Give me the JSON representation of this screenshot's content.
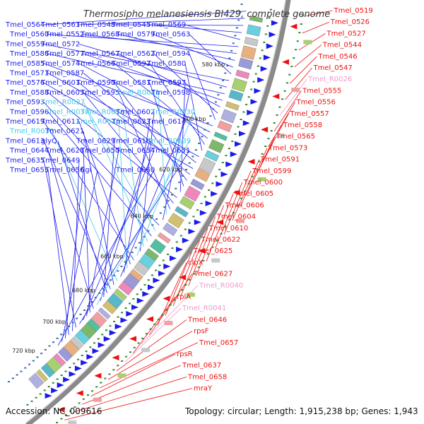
{
  "title": "Thermosipho melanesiensis BI429, complete genome",
  "footer": {
    "accession": "Accession: NC_009616",
    "topology": "Topology: circular; Length: 1,915,238 bp; Genes: 1,943"
  },
  "colors": {
    "forward_strand": "#1a1aee",
    "reverse_strand": "#ee1111",
    "rna_forward": "#44c8e8",
    "rna_reverse": "#ee99cc",
    "backbone": "#7a7a7a",
    "dots": "#2a8a2a"
  },
  "tick_labels": [
    "580 kbp",
    "600 kbp",
    "620 kbp",
    "640 kbp",
    "660 kbp",
    "680 kbp",
    "700 kbp",
    "720 kbp"
  ],
  "labels_forward": [
    {
      "t": "Tmel_0564",
      "type": "fwd"
    },
    {
      "t": "Tmel_0561",
      "type": "fwd"
    },
    {
      "t": "Tmel_0548",
      "type": "fwd"
    },
    {
      "t": "Tmel_0545",
      "type": "fwd"
    },
    {
      "t": "Tmel_0569",
      "type": "fwd"
    },
    {
      "t": "Tmel_0560",
      "type": "fwd"
    },
    {
      "t": "Tmel_0552",
      "type": "fwd"
    },
    {
      "t": "Tmel_0568",
      "type": "fwd"
    },
    {
      "t": "Tmel_0579",
      "type": "fwd"
    },
    {
      "t": "Tmel_0563",
      "type": "fwd"
    },
    {
      "t": "Tmel_0559",
      "type": "fwd"
    },
    {
      "t": "Tmel_0572",
      "type": "fwd"
    },
    {
      "t": "Tmel_0586",
      "type": "fwd"
    },
    {
      "t": "Tmel_0577",
      "type": "fwd"
    },
    {
      "t": "Tmel_0567",
      "type": "fwd"
    },
    {
      "t": "Tmel_0562",
      "type": "fwd"
    },
    {
      "t": "Tmel_0594",
      "type": "fwd"
    },
    {
      "t": "Tmel_0585",
      "type": "fwd"
    },
    {
      "t": "Tmel_0574",
      "type": "fwd"
    },
    {
      "t": "Tmel_0566",
      "type": "fwd"
    },
    {
      "t": "Tmel_0592",
      "type": "fwd"
    },
    {
      "t": "Tmel_0580",
      "type": "fwd"
    },
    {
      "t": "Tmel_0571",
      "type": "fwd"
    },
    {
      "t": "Tmel_0587",
      "type": "fwd"
    },
    {
      "t": "Tmel_0576",
      "type": "fwd"
    },
    {
      "t": "Tmel_0601",
      "type": "fwd"
    },
    {
      "t": "Tmel_0590",
      "type": "fwd"
    },
    {
      "t": "Tmel_0581",
      "type": "fwd"
    },
    {
      "t": "Tmel_0597",
      "type": "fwd"
    },
    {
      "t": "Tmel_0588",
      "type": "fwd"
    },
    {
      "t": "Tmel_0603",
      "type": "fwd"
    },
    {
      "t": "Tmel_0595",
      "type": "fwd"
    },
    {
      "t": "Tmel_R0031",
      "type": "rna"
    },
    {
      "t": "Tmel_0598",
      "type": "fwd"
    },
    {
      "t": "Tmel_0593",
      "type": "fwd"
    },
    {
      "t": "Tmel_R0027",
      "type": "rna"
    },
    {
      "t": "Tmel_0596",
      "type": "fwd"
    },
    {
      "t": "Tmel_R0037",
      "type": "rna"
    },
    {
      "t": "Tmel_R0033",
      "type": "rna"
    },
    {
      "t": "Tmel_0602",
      "type": "fwd"
    },
    {
      "t": "Tmel_R0030",
      "type": "rna"
    },
    {
      "t": "Tmel_0619",
      "type": "fwd"
    },
    {
      "t": "Tmel_0611",
      "type": "fwd"
    },
    {
      "t": "Tmel_R0035",
      "type": "rna"
    },
    {
      "t": "Tmel_0623",
      "type": "fwd"
    },
    {
      "t": "Tmel_0614",
      "type": "fwd"
    },
    {
      "t": "Tmel_R0036",
      "type": "rna"
    },
    {
      "t": "Tmel_0621",
      "type": "fwd"
    },
    {
      "t": "Tmel_0613",
      "type": "fwd"
    },
    {
      "t": "glyQ",
      "type": "fwd"
    },
    {
      "t": "Tmel_0629",
      "type": "fwd"
    },
    {
      "t": "Tmel_0618",
      "type": "fwd"
    },
    {
      "t": "Tmel_R0039",
      "type": "rna"
    },
    {
      "t": "Tmel_0644",
      "type": "fwd"
    },
    {
      "t": "Tmel_0628",
      "type": "fwd"
    },
    {
      "t": "Tmel_0650",
      "type": "fwd"
    },
    {
      "t": "Tmel_0634",
      "type": "fwd"
    },
    {
      "t": "Tmel_0651",
      "type": "fwd"
    },
    {
      "t": "Tmel_0635",
      "type": "fwd"
    },
    {
      "t": "Tmel_0649",
      "type": "fwd"
    },
    {
      "t": "Tmel_0655",
      "type": "fwd"
    },
    {
      "t": "Tmel_0656",
      "type": "fwd"
    },
    {
      "t": "flgI",
      "type": "fwd"
    },
    {
      "t": "Tmel_0660",
      "type": "fwd"
    }
  ],
  "labels_reverse": [
    {
      "t": "Tmel_0519",
      "type": "rev"
    },
    {
      "t": "Tmel_0526",
      "type": "rev"
    },
    {
      "t": "Tmel_0527",
      "type": "rev"
    },
    {
      "t": "Tmel_0544",
      "type": "rev"
    },
    {
      "t": "Tmel_0546",
      "type": "rev"
    },
    {
      "t": "Tmel_0547",
      "type": "rev"
    },
    {
      "t": "Tmel_R0026",
      "type": "rrna"
    },
    {
      "t": "Tmel_0555",
      "type": "rev"
    },
    {
      "t": "Tmel_0556",
      "type": "rev"
    },
    {
      "t": "Tmel_0557",
      "type": "rev"
    },
    {
      "t": "Tmel_0558",
      "type": "rev"
    },
    {
      "t": "Tmel_0565",
      "type": "rev"
    },
    {
      "t": "Tmel_0573",
      "type": "rev"
    },
    {
      "t": "Tmel_0591",
      "type": "rev"
    },
    {
      "t": "Tmel_0599",
      "type": "rev"
    },
    {
      "t": "Tmel_0600",
      "type": "rev"
    },
    {
      "t": "Tmel_0605",
      "type": "rev"
    },
    {
      "t": "Tmel_0606",
      "type": "rev"
    },
    {
      "t": "Tmel_0604",
      "type": "rev"
    },
    {
      "t": "Tmel_0610",
      "type": "rev"
    },
    {
      "t": "Tmel_0622",
      "type": "rev"
    },
    {
      "t": "Tmel_0625",
      "type": "rev"
    },
    {
      "t": "clpX",
      "type": "rev"
    },
    {
      "t": "Tmel_0627",
      "type": "rev"
    },
    {
      "t": "Tmel_R0040",
      "type": "rrna"
    },
    {
      "t": "rplA",
      "type": "rev"
    },
    {
      "t": "Tmel_R0041",
      "type": "rrna"
    },
    {
      "t": "Tmel_0646",
      "type": "rev"
    },
    {
      "t": "rpsF",
      "type": "rev"
    },
    {
      "t": "Tmel_0657",
      "type": "rev"
    },
    {
      "t": "rpsR",
      "type": "rev"
    },
    {
      "t": "Tmel_0637",
      "type": "rev"
    },
    {
      "t": "Tmel_0658",
      "type": "rev"
    },
    {
      "t": "mraY",
      "type": "rev"
    }
  ]
}
